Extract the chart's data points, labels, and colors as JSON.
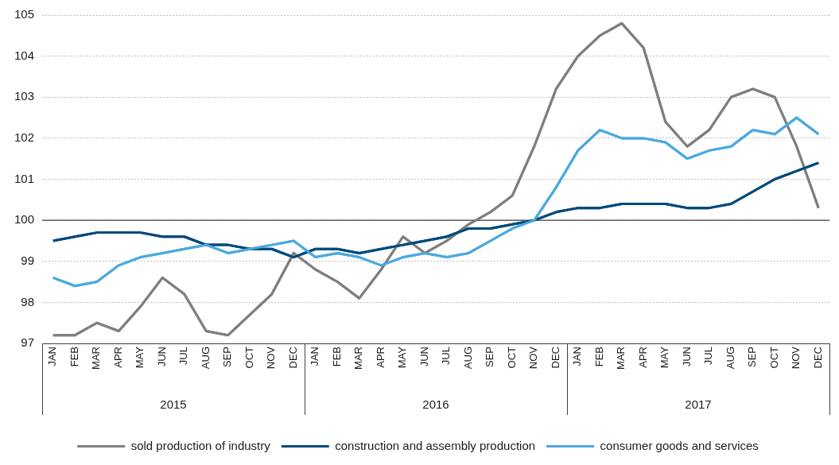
{
  "chart_data": {
    "type": "line",
    "categories": [
      "JAN",
      "FEB",
      "MAR",
      "APR",
      "MAY",
      "JUN",
      "JUL",
      "AUG",
      "SEP",
      "OCT",
      "NOV",
      "DEC",
      "JAN",
      "FEB",
      "MAR",
      "APR",
      "MAY",
      "JUN",
      "JUL",
      "AUG",
      "SEP",
      "OCT",
      "NOV",
      "DEC",
      "JAN",
      "FEB",
      "MAR",
      "APR",
      "MAY",
      "JUN",
      "JUL",
      "AUG",
      "SEP",
      "OCT",
      "NOV",
      "DEC"
    ],
    "series": [
      {
        "name": "sold production of industry",
        "color": "#7f7f7f",
        "values": [
          97.2,
          97.2,
          97.5,
          97.3,
          97.9,
          98.6,
          98.2,
          97.3,
          97.2,
          97.7,
          98.2,
          99.2,
          98.8,
          98.5,
          98.1,
          98.8,
          99.6,
          99.2,
          99.5,
          99.9,
          100.2,
          100.6,
          101.8,
          103.2,
          104.0,
          104.5,
          104.8,
          104.2,
          102.4,
          101.8,
          102.2,
          103.0,
          103.2,
          103.0,
          101.8,
          100.3
        ]
      },
      {
        "name": "construction and assembly production",
        "color": "#004a7c",
        "values": [
          99.5,
          99.6,
          99.7,
          99.7,
          99.7,
          99.6,
          99.6,
          99.4,
          99.4,
          99.3,
          99.3,
          99.1,
          99.3,
          99.3,
          99.2,
          99.3,
          99.4,
          99.5,
          99.6,
          99.8,
          99.8,
          99.9,
          100.0,
          100.2,
          100.3,
          100.3,
          100.4,
          100.4,
          100.4,
          100.3,
          100.3,
          100.4,
          100.7,
          101.0,
          101.2,
          101.4
        ]
      },
      {
        "name": "consumer goods and services",
        "color": "#4ba9e0",
        "values": [
          98.6,
          98.4,
          98.5,
          98.9,
          99.1,
          99.2,
          99.3,
          99.4,
          99.2,
          99.3,
          99.4,
          99.5,
          99.1,
          99.2,
          99.1,
          98.9,
          99.1,
          99.2,
          99.1,
          99.2,
          99.5,
          99.8,
          100.0,
          100.8,
          101.7,
          102.2,
          102.0,
          102.0,
          101.9,
          101.5,
          101.7,
          101.8,
          102.2,
          102.1,
          102.5,
          102.1
        ]
      }
    ],
    "ylim": [
      97,
      105
    ],
    "yticks": [
      97,
      98,
      99,
      100,
      101,
      102,
      103,
      104,
      105
    ],
    "ref_lines": [
      {
        "axis": "y",
        "value": 100,
        "color": "#404040"
      }
    ],
    "annotations": [
      "2015",
      "2016",
      "2017"
    ],
    "grid": "y",
    "legend": "bottom",
    "marker": "none",
    "line_style": "solid"
  }
}
